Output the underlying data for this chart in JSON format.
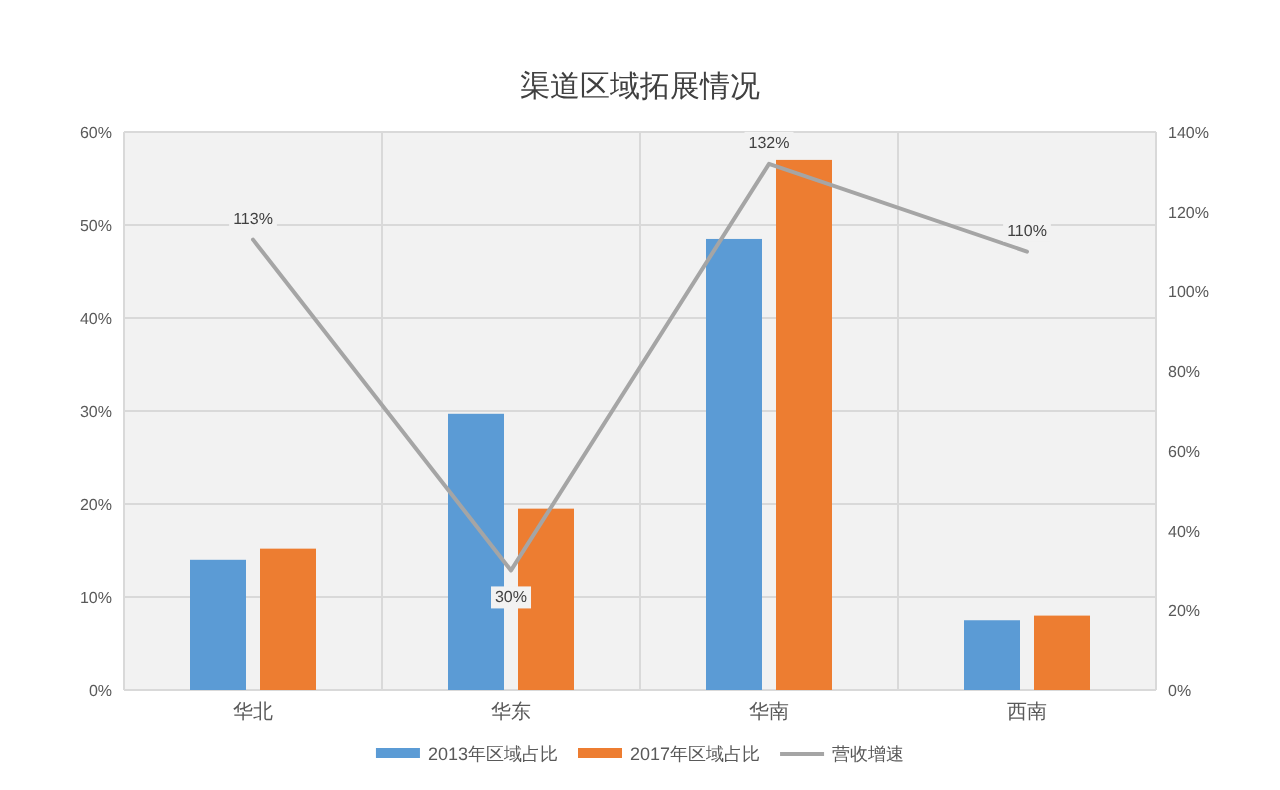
{
  "chart_data": {
    "type": "bar",
    "title": "渠道区域拓展情况",
    "categories": [
      "华北",
      "华东",
      "华南",
      "西南"
    ],
    "series": [
      {
        "name": "2013年区域占比",
        "color": "#5b9bd5",
        "values": [
          14,
          29.7,
          48.5,
          7.5
        ]
      },
      {
        "name": "2017年区域占比",
        "color": "#ed7d31",
        "values": [
          15.2,
          19.5,
          57,
          8
        ]
      },
      {
        "name": "营收增速",
        "type": "line",
        "axis": "y2",
        "color": "#a5a5a5",
        "values": [
          113,
          30,
          132,
          110
        ],
        "value_labels": [
          "113%",
          "30%",
          "132%",
          "110%"
        ]
      }
    ],
    "ylim": [
      0,
      60
    ],
    "yticks": [
      {
        "value": 0,
        "label": "0%"
      },
      {
        "value": 10,
        "label": "10%"
      },
      {
        "value": 20,
        "label": "20%"
      },
      {
        "value": 30,
        "label": "30%"
      },
      {
        "value": 40,
        "label": "40%"
      },
      {
        "value": 50,
        "label": "50%"
      },
      {
        "value": 60,
        "label": "60%"
      }
    ],
    "y2lim": [
      0,
      140
    ],
    "y2ticks": [
      {
        "value": 0,
        "label": "0%"
      },
      {
        "value": 20,
        "label": "20%"
      },
      {
        "value": 40,
        "label": "40%"
      },
      {
        "value": 60,
        "label": "60%"
      },
      {
        "value": 80,
        "label": "80%"
      },
      {
        "value": 100,
        "label": "100%"
      },
      {
        "value": 120,
        "label": "120%"
      },
      {
        "value": 140,
        "label": "140%"
      }
    ],
    "grid": true,
    "legend": "bottom"
  }
}
